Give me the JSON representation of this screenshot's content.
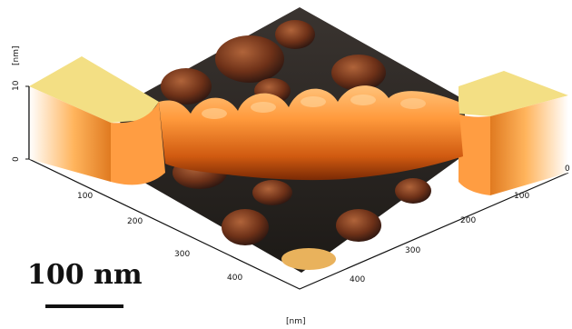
{
  "figure": {
    "z_axis": {
      "unit": "[nm]",
      "ticks": [
        "0",
        "10"
      ]
    },
    "left_axis": {
      "ticks": [
        "100",
        "200",
        "300",
        "400"
      ]
    },
    "right_axis": {
      "ticks": [
        "0",
        "100",
        "200",
        "300",
        "400"
      ]
    },
    "bottom_unit": "[nm]",
    "scale_bar": {
      "label": "100 nm"
    },
    "colors": {
      "plateau": "#f3df84",
      "ridge_bright": "#ffa34a",
      "ridge_dark": "#b43a05",
      "substrate": "#1b1714",
      "blob": "#7a3b22"
    }
  }
}
